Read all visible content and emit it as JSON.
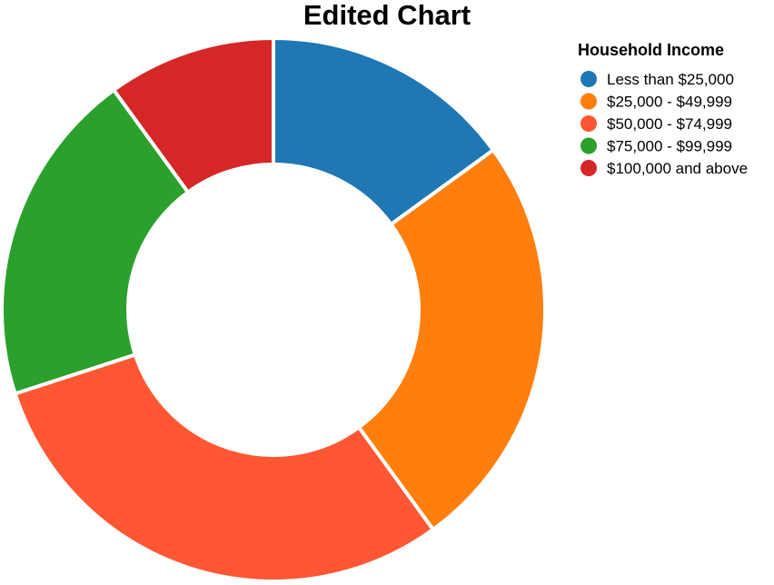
{
  "chart_data": {
    "type": "pie",
    "donut": true,
    "title": "Edited Chart",
    "legend": {
      "title": "Household Income",
      "placement": "top-right"
    },
    "slices": [
      {
        "label": "Less than $25,000",
        "value": 15,
        "color": "#1f77b4"
      },
      {
        "label": "$25,000 - $49,999",
        "value": 25,
        "color": "#ff7f0e"
      },
      {
        "label": "$50,000 - $74,999",
        "value": 30,
        "color": "#ff5733"
      },
      {
        "label": "$75,000 - $99,999",
        "value": 20,
        "color": "#2ca02c"
      },
      {
        "label": "$100,000 and above",
        "value": 10,
        "color": "#d62728"
      }
    ]
  }
}
